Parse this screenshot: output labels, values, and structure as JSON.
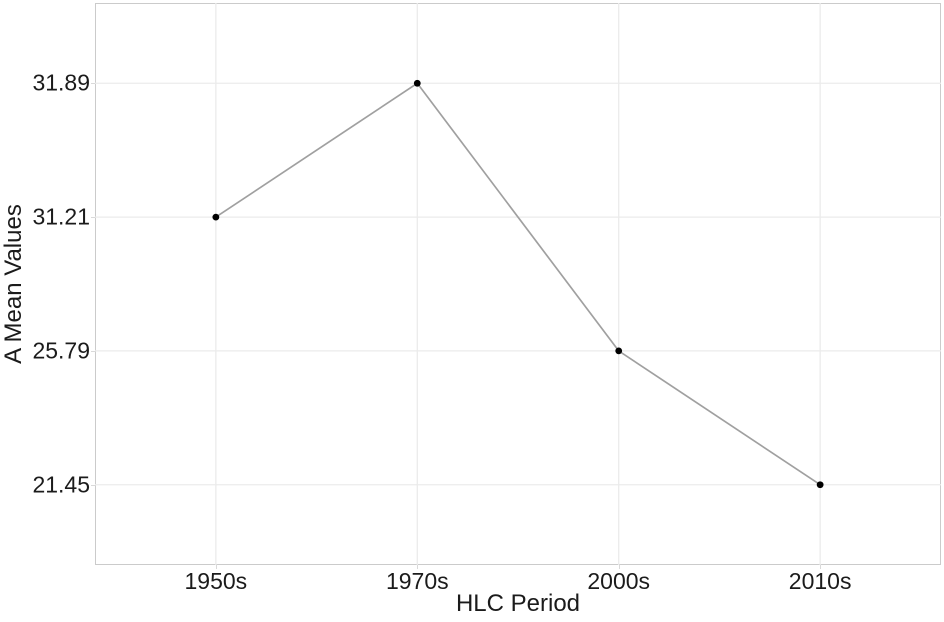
{
  "figure": {
    "background": "#ffffff",
    "panel_border_color": "#cbcbcb",
    "grid_color": "#ebebeb",
    "tick_mark_color": "#d9d9d9",
    "text_color": "#1b1b1b"
  },
  "chart_data": {
    "type": "line",
    "title": "",
    "xlabel": "HLC Period",
    "ylabel": "A Mean Values",
    "categories": [
      "1950s",
      "1970s",
      "2000s",
      "2010s"
    ],
    "values": [
      31.21,
      31.89,
      25.79,
      21.45
    ],
    "x_tick_labels": [
      "1950s",
      "1970s",
      "2000s",
      "2010s"
    ],
    "y_tick_labels": [
      "31.89",
      "31.21",
      "25.79",
      "21.45"
    ],
    "axis_layout": "both axes categorical; y ticks equally spaced at data values sorted descending",
    "grid": "major gridlines only",
    "legend": "none",
    "series_line_color": "#a0a0a0",
    "point_color": "#000000"
  }
}
